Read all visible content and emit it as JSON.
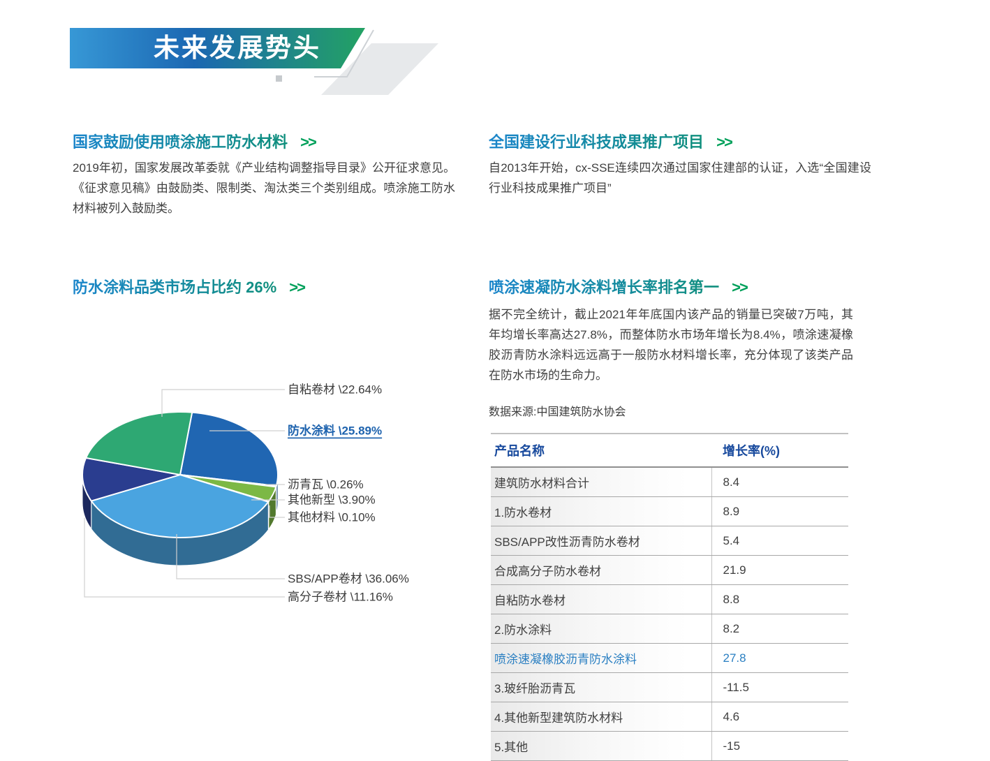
{
  "banner": {
    "title": "未来发展势头"
  },
  "sections": {
    "s1": {
      "title": "国家鼓励使用喷涂施工防水材料",
      "arrow": ">>",
      "body": "2019年初，国家发展改革委就《产业结构调整指导目录》公开征求意见。《征求意见稿》由鼓励类、限制类、淘汰类三个类别组成。喷涂施工防水材料被列入鼓励类。"
    },
    "s2": {
      "title": "全国建设行业科技成果推广项目",
      "arrow": ">>",
      "body": "自2013年开始，cx-SSE连续四次通过国家住建部的认证，入选“全国建设行业科技成果推广项目”"
    },
    "s3": {
      "title": "防水涂料品类市场占比约 26%",
      "arrow": ">>"
    },
    "s4": {
      "title": "喷涂速凝防水涂料增长率排名第一",
      "arrow": ">>",
      "body": "据不完全统计，截止2021年年底国内该产品的销量已突破7万吨，其年均增长率高达27.8%，而整体防水市场年增长为8.4%，喷涂速凝橡胶沥青防水涂料远远高于一般防水材料增长率，充分体现了该类产品在防水市场的生命力。"
    }
  },
  "chart_data": {
    "type": "pie",
    "title": "防水涂料品类市场占比约 26%",
    "unit": "%",
    "start_angle_deg": 83,
    "direction": "clockwise",
    "slices": [
      {
        "label": "防水涂料",
        "value": 25.89,
        "value_text": "25.89",
        "color": "#2066b2",
        "highlight": true
      },
      {
        "label": "沥青瓦",
        "value": 0.26,
        "value_text": "0.26",
        "color": "#f5a04c"
      },
      {
        "label": "其他新型",
        "value": 3.9,
        "value_text": "3.90",
        "color": "#7cb845"
      },
      {
        "label": "其他材料",
        "value": 0.1,
        "value_text": "0.10",
        "color": "#c4c4c6"
      },
      {
        "label": "SBS/APP卷材",
        "value": 36.06,
        "value_text": "36.06",
        "color": "#4aa4e0"
      },
      {
        "label": "高分子卷材",
        "value": 11.16,
        "value_text": "11.16",
        "color": "#2a3d8f"
      },
      {
        "label": "自粘卷材",
        "value": 22.64,
        "value_text": "22.64",
        "color": "#2ea873"
      }
    ]
  },
  "table": {
    "source": "数据来源:中国建筑防水协会",
    "columns": [
      "产品名称",
      "增长率(%)"
    ],
    "rows": [
      {
        "name": "建筑防水材料合计",
        "value": "8.4"
      },
      {
        "name": "1.防水卷材",
        "value": "8.9"
      },
      {
        "name": "SBS/APP改性沥青防水卷材",
        "value": "5.4"
      },
      {
        "name": "合成高分子防水卷材",
        "value": "21.9"
      },
      {
        "name": "自粘防水卷材",
        "value": "8.8"
      },
      {
        "name": "2.防水涂料",
        "value": "8.2"
      },
      {
        "name": "喷涂速凝橡胶沥青防水涂料",
        "value": "27.8",
        "highlight": true
      },
      {
        "name": "3.玻纤胎沥青瓦",
        "value": "-11.5"
      },
      {
        "name": "4.其他新型建筑防水材料",
        "value": "4.6"
      },
      {
        "name": "5.其他",
        "value": "-15"
      }
    ]
  },
  "colors": {
    "banner_gradient": [
      "#3798d6",
      "#1b67b2",
      "#23a263"
    ],
    "title_gradient": [
      "#1a85cb",
      "#0f8f7c"
    ],
    "arrow_green": "#00a05a",
    "body_text": "#3f3f3f",
    "table_header_text": "#17499d",
    "highlight_text": "#2a7fc2",
    "leader_line": "#d0d0d0"
  }
}
